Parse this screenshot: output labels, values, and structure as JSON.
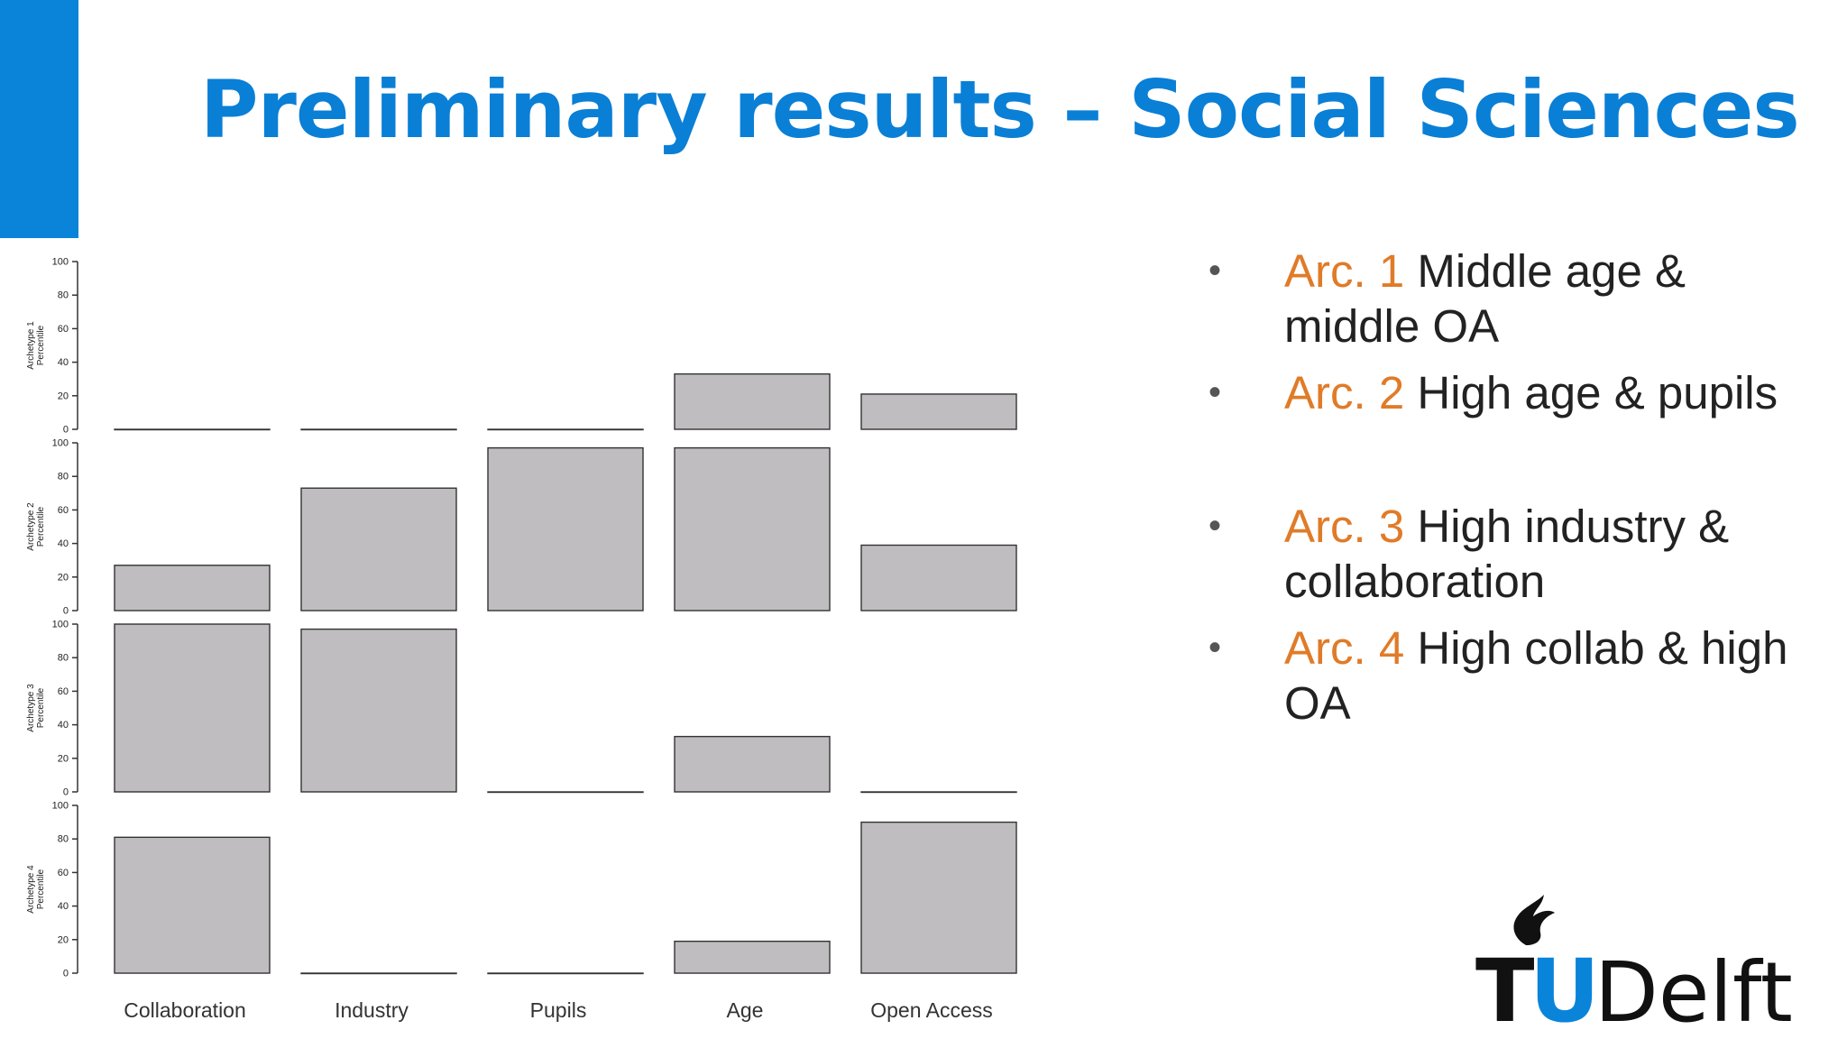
{
  "slide": {
    "title": "Preliminary results – Social Sciences",
    "accent_color": "#0a84d9",
    "title_color": "#0a7fd6",
    "highlight_color": "#e07b28"
  },
  "bullets": [
    {
      "arc": "Arc. 1",
      "text": "Middle age & middle OA"
    },
    {
      "arc": "Arc. 2",
      "text": "High age & pupils"
    },
    {
      "arc": "Arc. 3",
      "text": "High industry & collaboration"
    },
    {
      "arc": "Arc. 4",
      "text": "High collab & high OA"
    }
  ],
  "logo": {
    "text_left": "T",
    "text_u": "U",
    "text_right": "Delft",
    "u_color": "#0a84d9"
  },
  "chart_data": {
    "type": "bar",
    "categories": [
      "Collaboration",
      "Industry",
      "Pupils",
      "Age",
      "Open Access"
    ],
    "ylim": [
      0,
      100
    ],
    "yticks": [
      "0",
      "20",
      "40",
      "60",
      "80",
      "100"
    ],
    "bar_color": "#c0bdc0",
    "panels": [
      {
        "ylabel": [
          "Archetype 1",
          "Percentile"
        ],
        "values": [
          0,
          0,
          0,
          33,
          21
        ]
      },
      {
        "ylabel": [
          "Archetype 2",
          "Percentile"
        ],
        "values": [
          27,
          73,
          97,
          97,
          39
        ]
      },
      {
        "ylabel": [
          "Archetype 3",
          "Percentile"
        ],
        "values": [
          100,
          97,
          0,
          33,
          0
        ]
      },
      {
        "ylabel": [
          "Archetype 4",
          "Percentile"
        ],
        "values": [
          81,
          0,
          0,
          19,
          90
        ]
      }
    ]
  }
}
